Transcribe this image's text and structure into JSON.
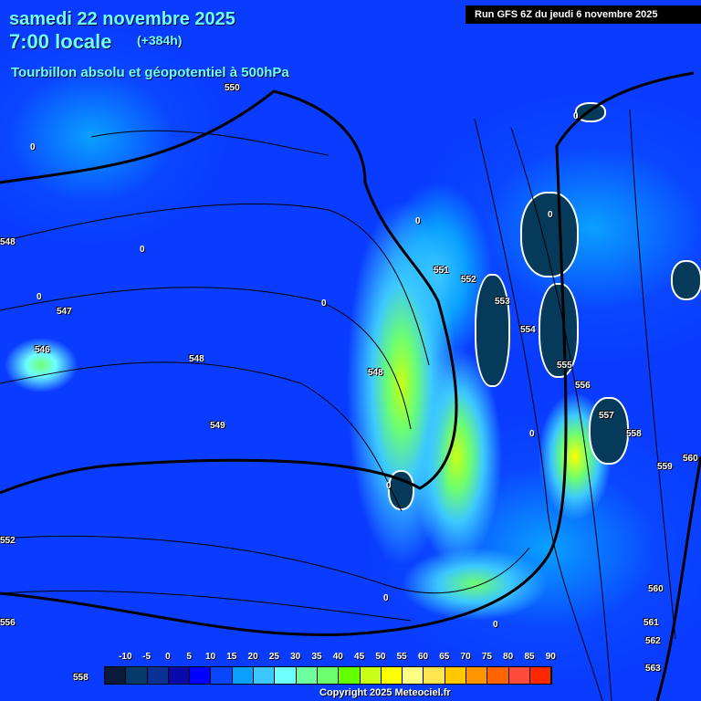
{
  "header": {
    "date": "samedi 22 novembre 2025",
    "time": "7:00 locale",
    "lead": "(+384h)",
    "title": "Tourbillon absolu et géopotentiel à 500hPa",
    "run": "Run GFS 6Z du jeudi 6 novembre 2025"
  },
  "contour_labels": [
    "550",
    "548",
    "547",
    "546",
    "548",
    "549",
    "551",
    "552",
    "553",
    "554",
    "555",
    "556",
    "557",
    "558",
    "559",
    "560",
    "552",
    "556",
    "558",
    "560",
    "561",
    "562",
    "563",
    "548"
  ],
  "legend": {
    "ticks": [
      "-10",
      "-5",
      "0",
      "5",
      "10",
      "15",
      "20",
      "25",
      "30",
      "35",
      "40",
      "45",
      "50",
      "55",
      "60",
      "65",
      "70",
      "75",
      "80",
      "85",
      "90"
    ],
    "colors": [
      "#0a1a3c",
      "#053a6a",
      "#0a3296",
      "#0a0aaa",
      "#0000ff",
      "#0a46ff",
      "#0aa0ff",
      "#3cc8ff",
      "#6effff",
      "#6effa0",
      "#6eff6e",
      "#64ff00",
      "#c8ff14",
      "#ffff00",
      "#ffff82",
      "#ffe650",
      "#ffc800",
      "#ff9600",
      "#ff6400",
      "#ff4b3c",
      "#ff2800"
    ]
  },
  "zero_label": "0",
  "copyright": "Copyright 2025 Meteociel.fr"
}
